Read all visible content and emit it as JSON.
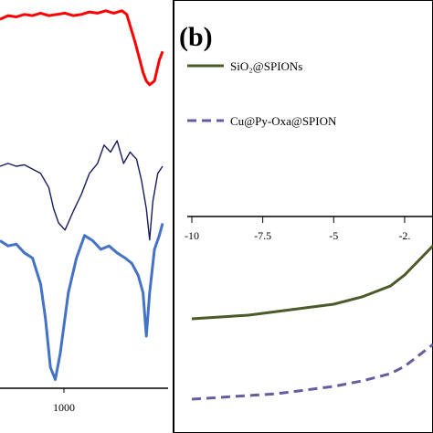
{
  "chart_data": [
    {
      "panel": "a",
      "type": "line",
      "xlabel": "",
      "ylabel": "",
      "x_tick_labels": [
        "1000"
      ],
      "series": [
        {
          "color": "#ff0000",
          "x": [
            0,
            0.05,
            0.1,
            0.15,
            0.2,
            0.25,
            0.3,
            0.35,
            0.4,
            0.45,
            0.5,
            0.55,
            0.6,
            0.65,
            0.7,
            0.75,
            0.78,
            0.8,
            0.83,
            0.86,
            0.88,
            0.9,
            0.92,
            0.95,
            0.98,
            1.0
          ],
          "y": [
            0.88,
            0.91,
            0.9,
            0.92,
            0.91,
            0.93,
            0.91,
            0.92,
            0.93,
            0.91,
            0.92,
            0.94,
            0.93,
            0.95,
            0.93,
            0.95,
            0.92,
            0.83,
            0.7,
            0.55,
            0.45,
            0.38,
            0.35,
            0.38,
            0.55,
            0.62
          ]
        },
        {
          "color": "#1a1a5e",
          "x": [
            0,
            0.05,
            0.1,
            0.15,
            0.2,
            0.25,
            0.3,
            0.33,
            0.36,
            0.4,
            0.45,
            0.5,
            0.55,
            0.6,
            0.64,
            0.68,
            0.72,
            0.76,
            0.8,
            0.84,
            0.87,
            0.9,
            0.92,
            0.94,
            0.97,
            1.0
          ],
          "y": [
            0.6,
            0.62,
            0.6,
            0.61,
            0.58,
            0.55,
            0.45,
            0.3,
            0.2,
            0.15,
            0.28,
            0.4,
            0.55,
            0.62,
            0.75,
            0.7,
            0.78,
            0.62,
            0.7,
            0.65,
            0.5,
            0.3,
            0.08,
            0.35,
            0.55,
            0.6
          ]
        },
        {
          "color": "#4472c4",
          "x": [
            0,
            0.05,
            0.1,
            0.15,
            0.2,
            0.25,
            0.28,
            0.31,
            0.34,
            0.37,
            0.42,
            0.47,
            0.52,
            0.57,
            0.62,
            0.67,
            0.72,
            0.77,
            0.81,
            0.85,
            0.88,
            0.9,
            0.92,
            0.95,
            0.98,
            1.0
          ],
          "y": [
            0.85,
            0.82,
            0.83,
            0.78,
            0.75,
            0.6,
            0.4,
            0.12,
            0.05,
            0.2,
            0.55,
            0.75,
            0.88,
            0.85,
            0.8,
            0.82,
            0.78,
            0.75,
            0.72,
            0.65,
            0.55,
            0.3,
            0.55,
            0.8,
            0.88,
            0.95
          ]
        }
      ]
    },
    {
      "panel": "b",
      "panel_label": "(b)",
      "type": "line",
      "x_tick_labels": [
        "-10",
        "-7.5",
        "-5",
        "-2."
      ],
      "xlim": [
        -10,
        -1.5
      ],
      "series": [
        {
          "name": "SiO₂@SPIONs",
          "color": "#4a5a28",
          "style": "solid",
          "x": [
            -10,
            -9,
            -8,
            -7,
            -6,
            -5,
            -4,
            -3,
            -2.5,
            -2,
            -1.5
          ],
          "y": [
            -0.28,
            -0.275,
            -0.27,
            -0.26,
            -0.25,
            -0.24,
            -0.22,
            -0.19,
            -0.16,
            -0.12,
            -0.08
          ]
        },
        {
          "name": "Cu@Py-Oxa@SPION",
          "color": "#6a5aa0",
          "style": "dashed",
          "x": [
            -10,
            -9,
            -8,
            -7,
            -6,
            -5,
            -4,
            -3,
            -2.5,
            -2,
            -1.5
          ],
          "y": [
            -0.5,
            -0.495,
            -0.49,
            -0.485,
            -0.475,
            -0.465,
            -0.45,
            -0.43,
            -0.41,
            -0.38,
            -0.35
          ]
        }
      ]
    }
  ]
}
